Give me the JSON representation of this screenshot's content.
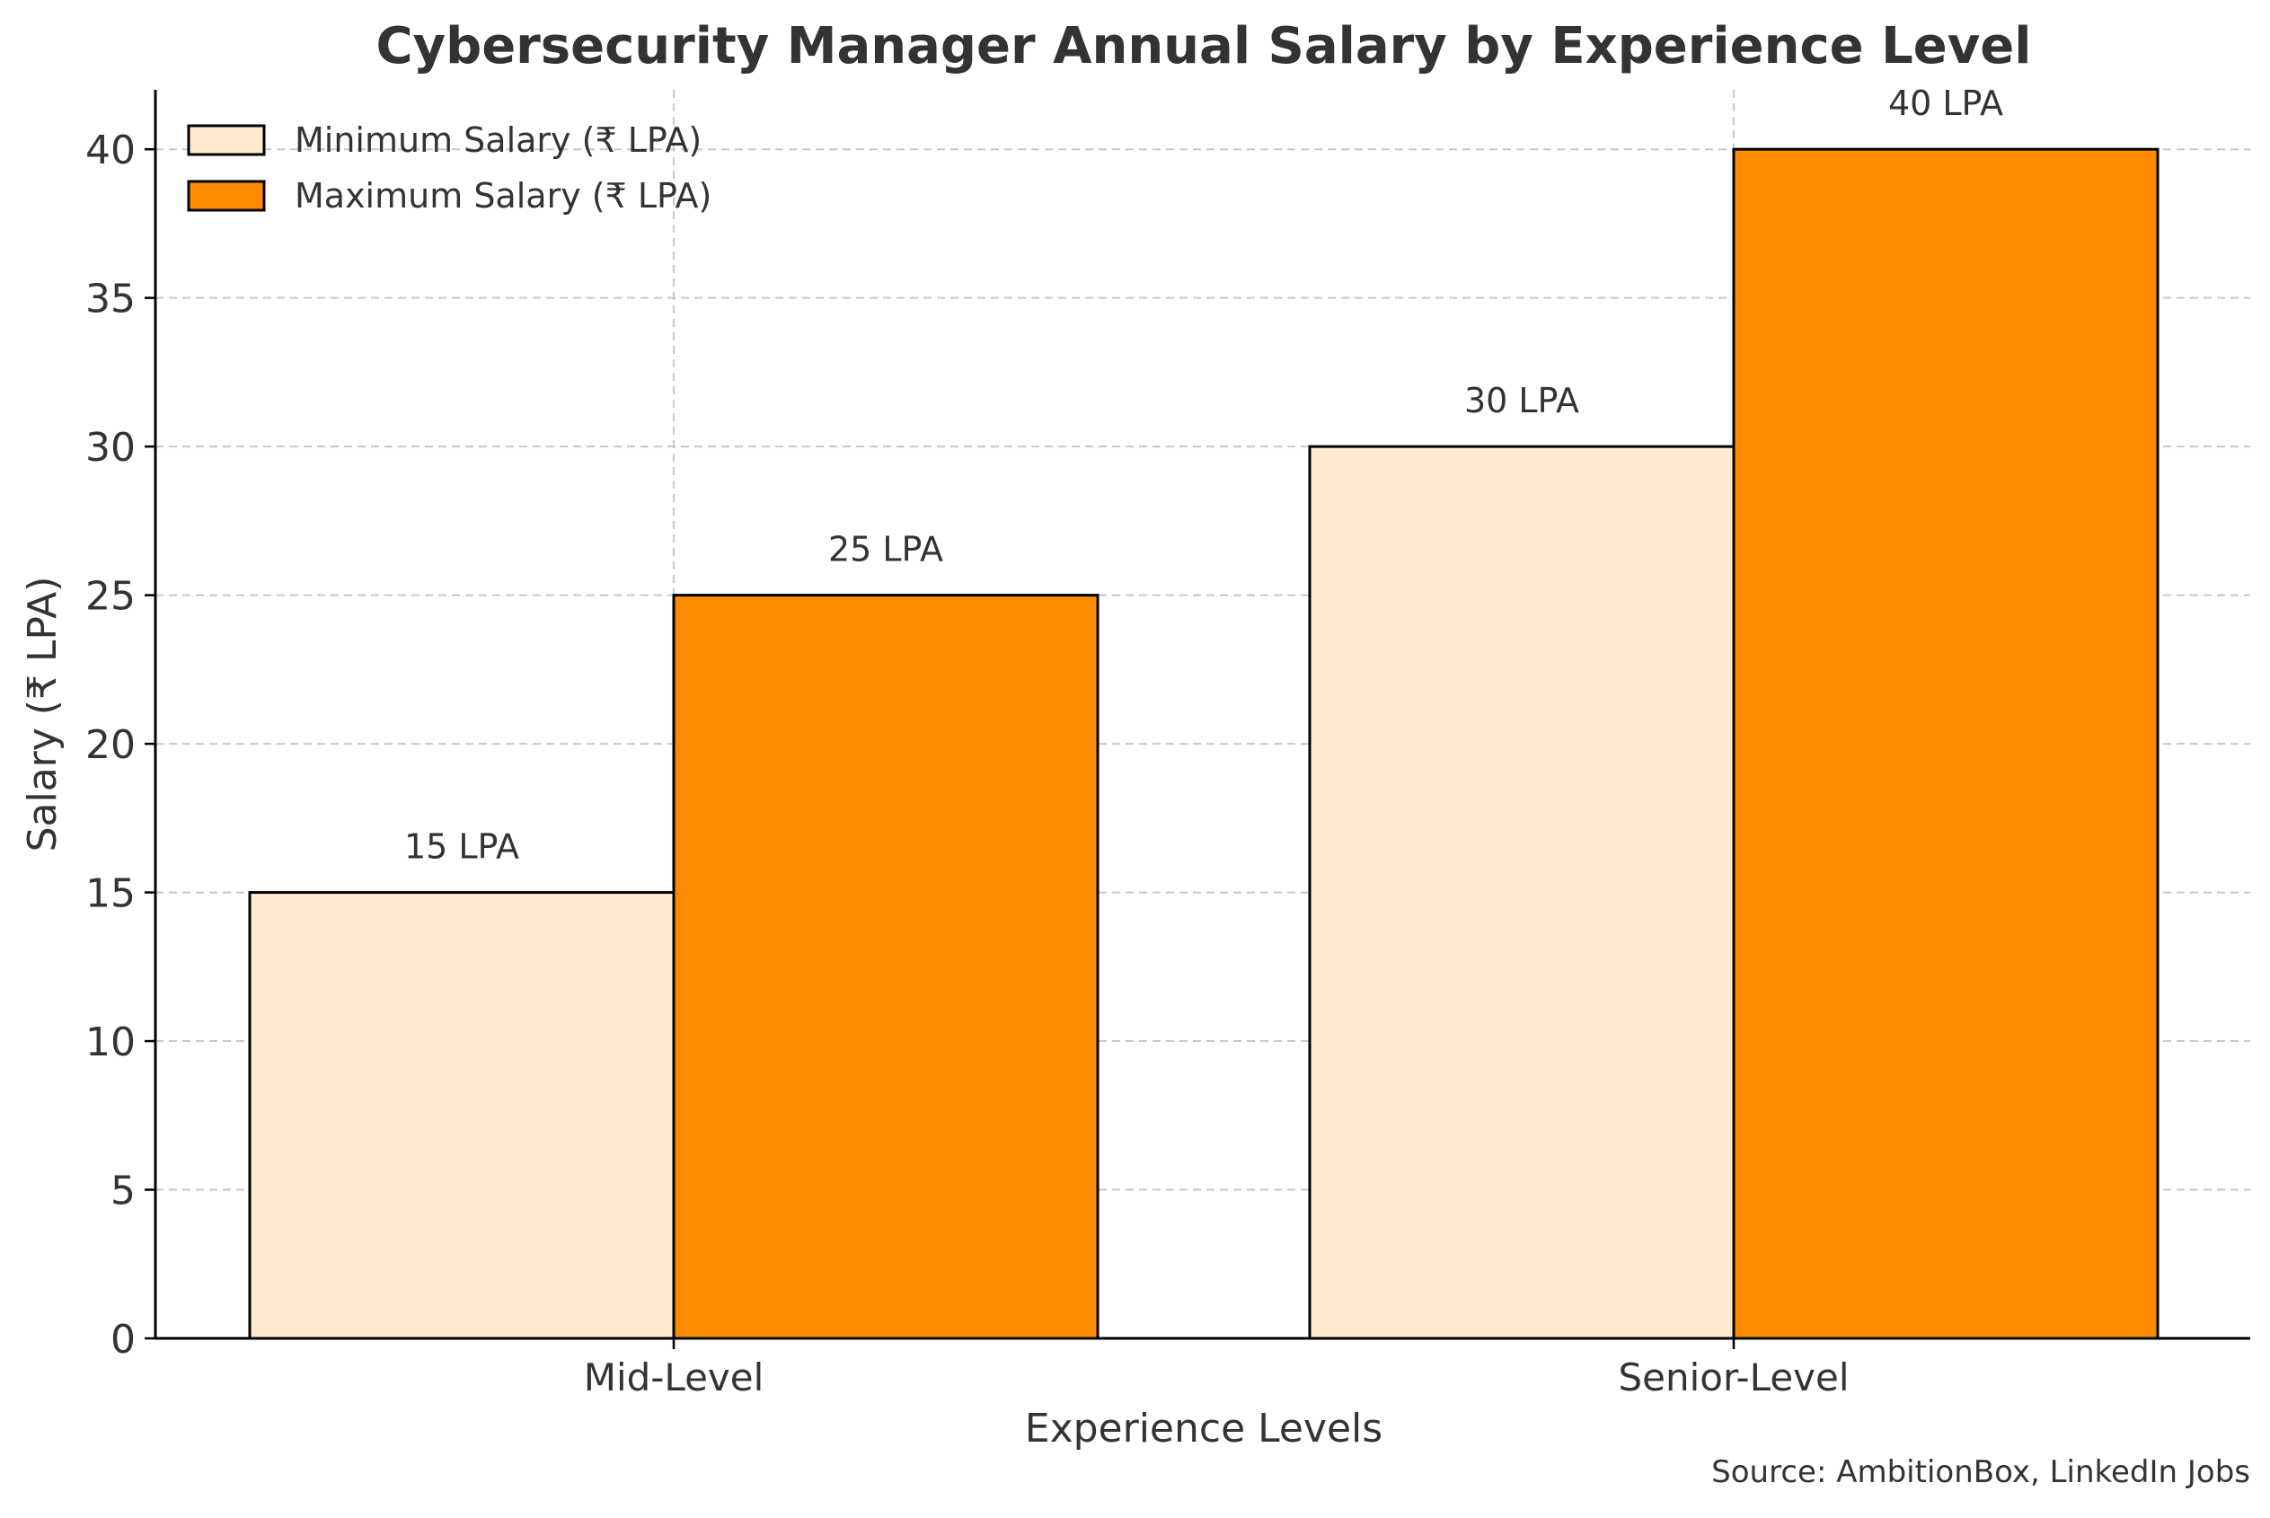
{
  "chart_data": {
    "type": "bar",
    "title": "Cybersecurity Manager Annual Salary by Experience Level",
    "xlabel": "Experience Levels",
    "ylabel": "Salary (₹ LPA)",
    "categories": [
      "Mid-Level",
      "Senior-Level"
    ],
    "series": [
      {
        "name": "Minimum Salary (₹ LPA)",
        "values": [
          15,
          30
        ],
        "labels": [
          "15 LPA",
          "30 LPA"
        ],
        "color": "#ffebcd"
      },
      {
        "name": "Maximum Salary (₹ LPA)",
        "values": [
          25,
          40
        ],
        "labels": [
          "25 LPA",
          "40 LPA"
        ],
        "color": "#ff8c00"
      }
    ],
    "ylim": [
      0,
      42
    ],
    "yticks": [
      0,
      5,
      10,
      15,
      20,
      25,
      30,
      35,
      40
    ],
    "grid": true,
    "legend_position": "top-left",
    "source": "Source: AmbitionBox, LinkedIn Jobs"
  },
  "colors": {
    "text": "#333333",
    "axis": "#000000",
    "grid": "#c8c8c8",
    "bar_edge": "#000000"
  }
}
